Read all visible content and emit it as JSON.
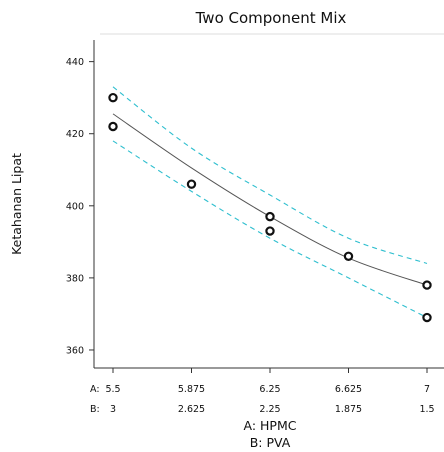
{
  "chart_data": {
    "type": "scatter",
    "title": "Two Component Mix",
    "ylabel": "Ketahanan Lipat",
    "xlabel_lines": [
      "A: HPMC",
      "B: PVA"
    ],
    "x_rows": [
      {
        "prefix": "A:",
        "ticks": [
          "5.5",
          "5.875",
          "6.25",
          "6.625",
          "7"
        ]
      },
      {
        "prefix": "B:",
        "ticks": [
          "3",
          "2.625",
          "2.25",
          "1.875",
          "1.5"
        ]
      }
    ],
    "xlim": [
      5.5,
      7
    ],
    "ylim": [
      355,
      446
    ],
    "yticks": [
      360,
      380,
      400,
      420,
      440
    ],
    "points": [
      {
        "x": 5.5,
        "y": 430
      },
      {
        "x": 5.5,
        "y": 422
      },
      {
        "x": 5.875,
        "y": 406
      },
      {
        "x": 6.25,
        "y": 397
      },
      {
        "x": 6.25,
        "y": 393
      },
      {
        "x": 6.625,
        "y": 386
      },
      {
        "x": 7,
        "y": 378
      },
      {
        "x": 7,
        "y": 369
      }
    ],
    "fit_line": {
      "x": [
        5.5,
        5.875,
        6.25,
        6.625,
        7
      ],
      "y": [
        425.5,
        410.5,
        397,
        385.5,
        378
      ]
    },
    "upper_band": {
      "x": [
        5.5,
        5.875,
        6.25,
        6.625,
        7
      ],
      "y": [
        433,
        416,
        403,
        391,
        384
      ]
    },
    "lower_band": {
      "x": [
        5.5,
        5.875,
        6.25,
        6.625,
        7
      ],
      "y": [
        418,
        404,
        391,
        380,
        369
      ]
    },
    "colors": {
      "fit_line": "#555555",
      "band": "#2fbfcf",
      "point_edge": "#111111",
      "axis": "#333333"
    }
  }
}
